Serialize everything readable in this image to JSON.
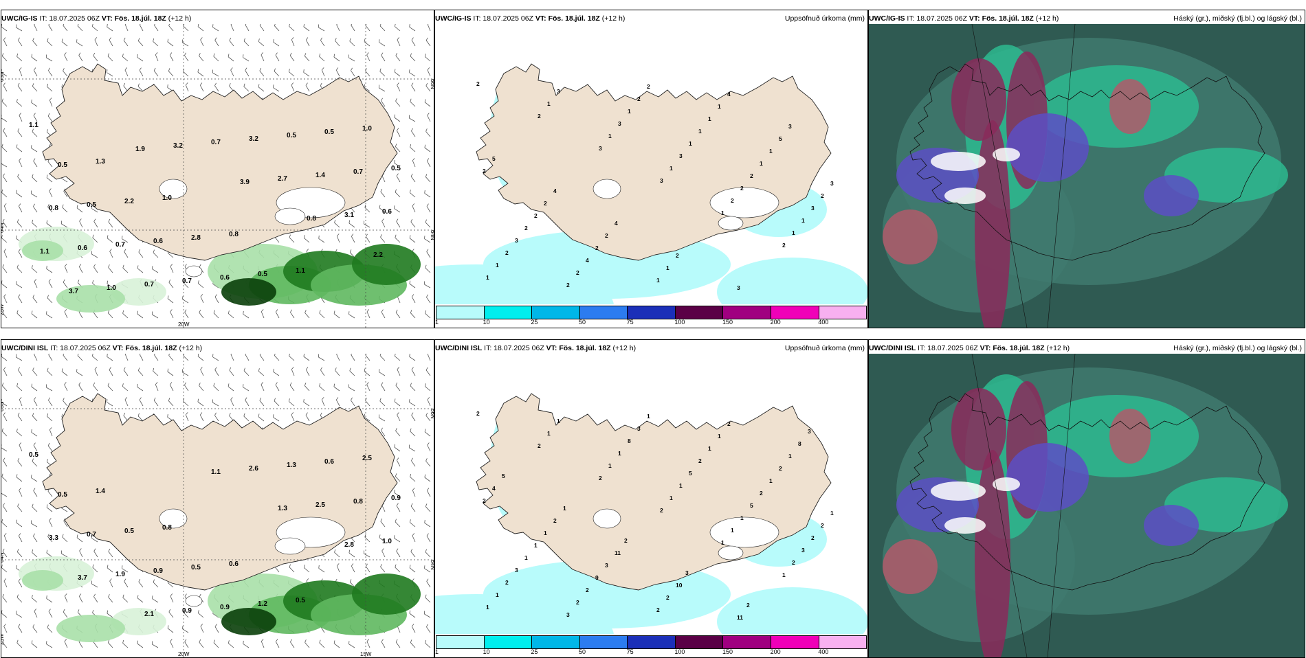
{
  "panels": [
    {
      "model": "UWC/IG-IS",
      "it_label": "IT: 18.07.2025 06Z",
      "vt_label": "VT: Fös. 18.júl. 18Z",
      "lead": "(+12 h)",
      "right_title": "",
      "type": "wind",
      "values": [
        "1.1",
        "1.3",
        "1.0",
        "0.8",
        "1.1",
        "1.0",
        "0.5",
        "2.2",
        "2.8",
        "0.5",
        "0.5",
        "0.5",
        "0.5",
        "0.6",
        "0.6",
        "0.5",
        "0.7",
        "0.8",
        "0.7",
        "0.7",
        "3.2",
        "1.4",
        "0.6",
        "0.6",
        "0.7",
        "0.7",
        "2.7",
        "3.1",
        "1.1",
        "1.0",
        "3.2",
        "3.9",
        "0.8",
        "2.2",
        "3.7",
        "1.9"
      ],
      "lat_labels": [
        "65N",
        "64N",
        "25W"
      ],
      "lon_labels": [
        "20W"
      ],
      "right_lat_labels": [
        "66N",
        "64N"
      ]
    },
    {
      "model": "UWC/IG-IS",
      "it_label": "IT: 18.07.2025 06Z",
      "vt_label": "VT: Fös. 18.júl. 18Z",
      "lead": "(+12 h)",
      "right_title": "Uppsöfnuð úrkoma (mm)",
      "type": "precip",
      "values": [
        "2",
        "2",
        "3",
        "3",
        "1",
        "2",
        "1",
        "1",
        "1",
        "1",
        "2",
        "1",
        "1",
        "3",
        "3",
        "3",
        "2",
        "1",
        "2",
        "2",
        "1",
        "1",
        "2",
        "3",
        "3",
        "2",
        "2",
        "1",
        "1",
        "2",
        "2",
        "4",
        "2",
        "1",
        "1",
        "3",
        "2",
        "2",
        "1",
        "1",
        "5",
        "2",
        "2",
        "2",
        "1",
        "4",
        "3",
        "5",
        "4",
        "4",
        "2",
        "3"
      ],
      "colorbar": {
        "colors": [
          "#b8fbfb",
          "#00eeee",
          "#00b7e8",
          "#2c7cf0",
          "#1b2fb8",
          "#5a0046",
          "#a00080",
          "#f000b8",
          "#f8b0f0"
        ],
        "labels": [
          "1",
          "10",
          "25",
          "50",
          "75",
          "100",
          "150",
          "200",
          "400"
        ]
      }
    },
    {
      "model": "UWC/IG-IS",
      "it_label": "IT: 18.07.2025 06Z",
      "vt_label": "VT: Fös. 18.júl. 18Z",
      "lead": "(+12 h)",
      "right_title": "Háský (gr.), miðský (fj.bl.) og lágský (bl.)",
      "type": "cloud"
    },
    {
      "model": "UWC/DINI ISL",
      "it_label": "IT: 18.07.2025 06Z",
      "vt_label": "VT: Fös. 18.júl. 18Z",
      "lead": "(+12 h)",
      "right_title": "",
      "type": "wind",
      "values": [
        "0.5",
        "1.4",
        "0.8",
        "0.6",
        "0.5",
        "2.5",
        "0.5",
        "0.5",
        "0.5",
        "1.2",
        "0.6",
        "0.9",
        "0.7",
        "0.9",
        "0.9",
        "1.3",
        "0.8",
        "3.3",
        "1.9",
        "0.9",
        "2.6",
        "2.5",
        "1.0",
        "3.7",
        "2.1",
        "1.1",
        "1.3",
        "2.8"
      ],
      "lat_labels": [
        "65N",
        "64N",
        "25W"
      ],
      "lon_labels": [
        "20W",
        "15W"
      ],
      "right_lat_labels": [
        "66N",
        "64N"
      ]
    },
    {
      "model": "UWC/DINI ISL",
      "it_label": "IT: 18.07.2025 06Z",
      "vt_label": "VT: Fös. 18.júl. 18Z",
      "lead": "(+12 h)",
      "right_title": "Uppsöfnuð úrkoma (mm)",
      "type": "precip",
      "values": [
        "2",
        "2",
        "2",
        "2",
        "1",
        "1",
        "1",
        "1",
        "1",
        "1",
        "1",
        "2",
        "1",
        "1",
        "1",
        "1",
        "1",
        "3",
        "2",
        "3",
        "8",
        "5",
        "5",
        "2",
        "3",
        "2",
        "3",
        "2",
        "2",
        "2",
        "1",
        "2",
        "1",
        "1",
        "1",
        "1",
        "1",
        "9",
        "2",
        "1",
        "2",
        "2",
        "1",
        "3",
        "2",
        "2",
        "1",
        "4",
        "2",
        "11",
        "10",
        "11",
        "8",
        "5",
        "1",
        "2",
        "3",
        "2",
        "3"
      ],
      "colorbar": {
        "colors": [
          "#b8fbfb",
          "#00eeee",
          "#00b7e8",
          "#2c7cf0",
          "#1b2fb8",
          "#5a0046",
          "#a00080",
          "#f000b8",
          "#f8b0f0"
        ],
        "labels": [
          "1",
          "10",
          "25",
          "50",
          "75",
          "100",
          "150",
          "200",
          "400"
        ]
      }
    },
    {
      "model": "UWC/DINI ISL",
      "it_label": "IT: 18.07.2025 06Z",
      "vt_label": "VT: Fös. 18.júl. 18Z",
      "lead": "(+12 h)",
      "right_title": "Háský (gr.), miðský (fj.bl.) og lágský (bl.)",
      "type": "cloud"
    }
  ]
}
